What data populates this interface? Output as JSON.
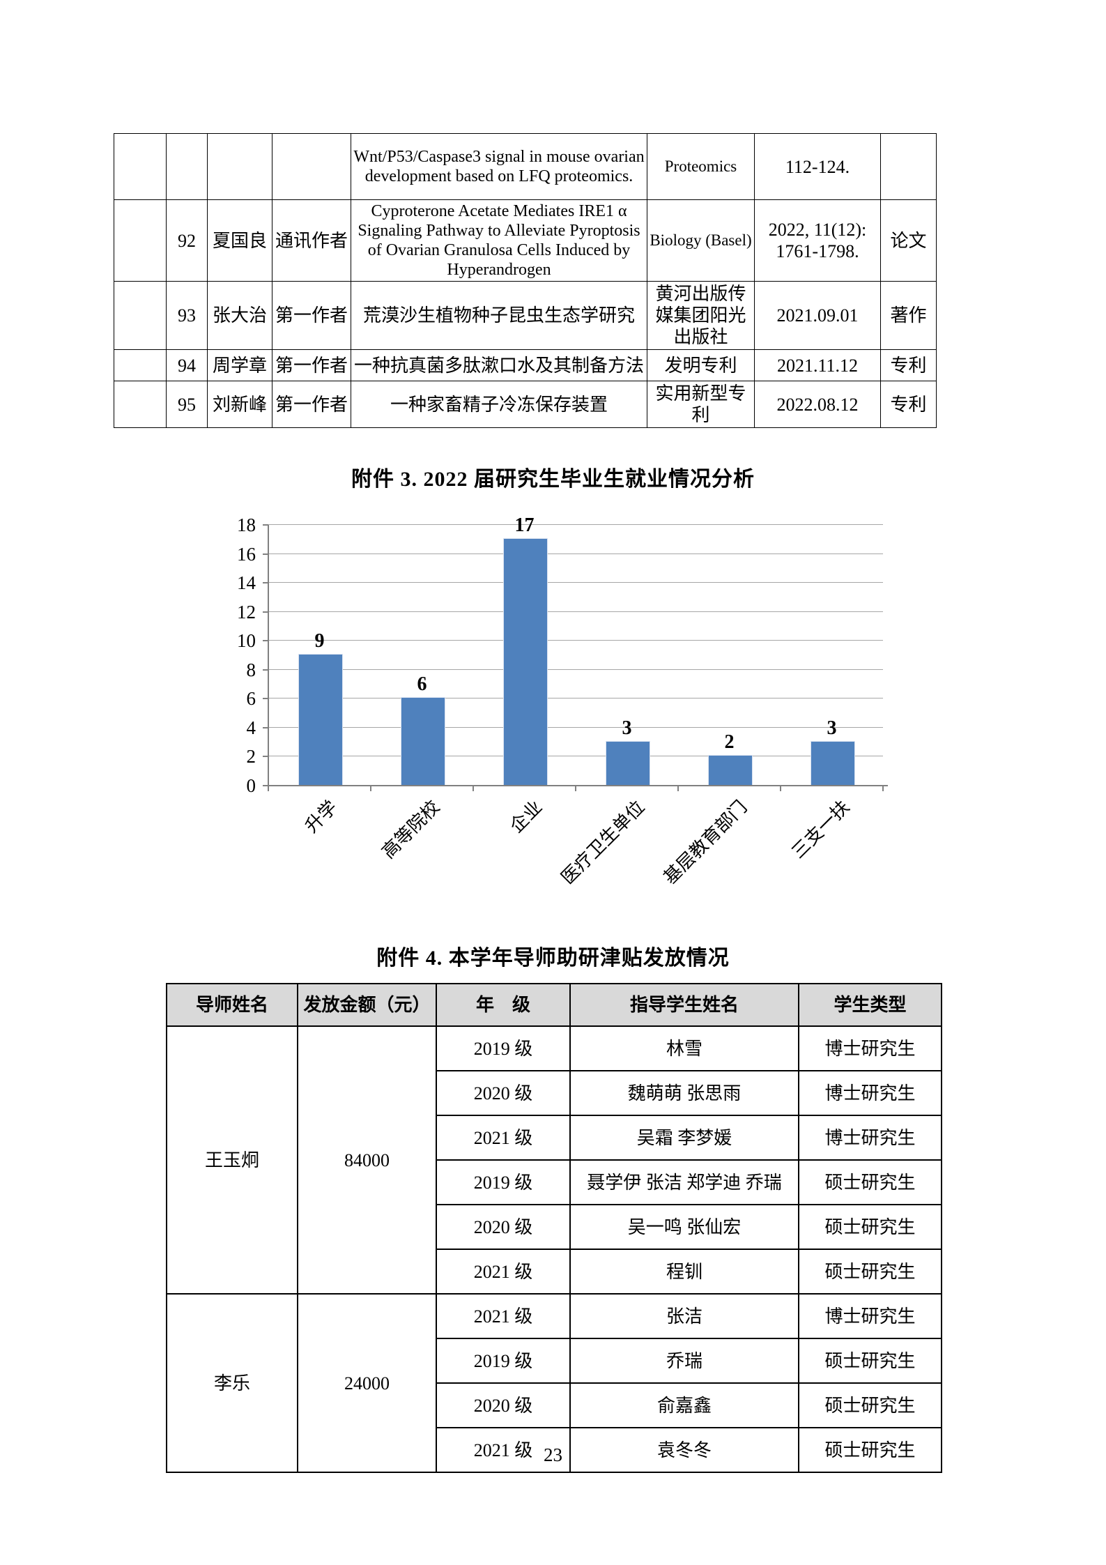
{
  "page": {
    "number": "23"
  },
  "attachment3_title": "附件 3. 2022 届研究生毕业生就业情况分析",
  "attachment4_title": "附件 4. 本学年导师助研津贴发放情况",
  "publications_table": {
    "rows": [
      {
        "seq": "",
        "author": "",
        "role": "",
        "title": "Wnt/P53/Caspase3 signal in mouse ovarian development based on LFQ proteomics.",
        "venue": "Proteomics",
        "info": "112-124.",
        "category": ""
      },
      {
        "seq": "92",
        "author": "夏国良",
        "role": "通讯作者",
        "title": "Cyproterone Acetate Mediates IRE1 α Signaling Pathway to Alleviate Pyroptosis of Ovarian Granulosa Cells Induced by Hyperandrogen",
        "venue": "Biology (Basel)",
        "info": "2022, 11(12): 1761-1798.",
        "category": "论文"
      },
      {
        "seq": "93",
        "author": "张大治",
        "role": "第一作者",
        "title": "荒漠沙生植物种子昆虫生态学研究",
        "venue": "黄河出版传媒集团阳光出版社",
        "info": "2021.09.01",
        "category": "著作"
      },
      {
        "seq": "94",
        "author": "周学章",
        "role": "第一作者",
        "title": "一种抗真菌多肽漱口水及其制备方法",
        "venue": "发明专利",
        "info": "2021.11.12",
        "category": "专利"
      },
      {
        "seq": "95",
        "author": "刘新峰",
        "role": "第一作者",
        "title": "一种家畜精子冷冻保存装置",
        "venue": "实用新型专利",
        "info": "2022.08.12",
        "category": "专利"
      }
    ]
  },
  "chart_data": {
    "type": "bar",
    "title": "附件 3. 2022 届研究生毕业生就业情况分析",
    "categories": [
      "升学",
      "高等院校",
      "企业",
      "医疗卫生单位",
      "基层教育部门",
      "三支一扶"
    ],
    "values": [
      9,
      6,
      17,
      3,
      2,
      3
    ],
    "xlabel": "",
    "ylabel": "",
    "ylim": [
      0,
      18
    ],
    "ytick_step": 2,
    "grid": true,
    "legend_position": "none",
    "bar_color": "#4f81bd"
  },
  "stipend_table": {
    "headers": [
      "导师姓名",
      "发放金额（元）",
      "年　级",
      "指导学生姓名",
      "学生类型"
    ],
    "groups": [
      {
        "advisor": "王玉炯",
        "amount": "84000",
        "rows": [
          {
            "grade": "2019 级",
            "students": "林雪",
            "type": "博士研究生"
          },
          {
            "grade": "2020 级",
            "students": "魏萌萌 张思雨",
            "type": "博士研究生"
          },
          {
            "grade": "2021 级",
            "students": "吴霜 李梦媛",
            "type": "博士研究生"
          },
          {
            "grade": "2019 级",
            "students": "聂学伊 张洁 郑学迪 乔瑞",
            "type": "硕士研究生"
          },
          {
            "grade": "2020 级",
            "students": "吴一鸣 张仙宏",
            "type": "硕士研究生"
          },
          {
            "grade": "2021 级",
            "students": "程钏",
            "type": "硕士研究生"
          }
        ]
      },
      {
        "advisor": "李乐",
        "amount": "24000",
        "rows": [
          {
            "grade": "2021 级",
            "students": "张洁",
            "type": "博士研究生"
          },
          {
            "grade": "2019 级",
            "students": "乔瑞",
            "type": "硕士研究生"
          },
          {
            "grade": "2020 级",
            "students": "俞嘉鑫",
            "type": "硕士研究生"
          },
          {
            "grade": "2021 级",
            "students": "袁冬冬",
            "type": "硕士研究生"
          }
        ]
      }
    ]
  }
}
